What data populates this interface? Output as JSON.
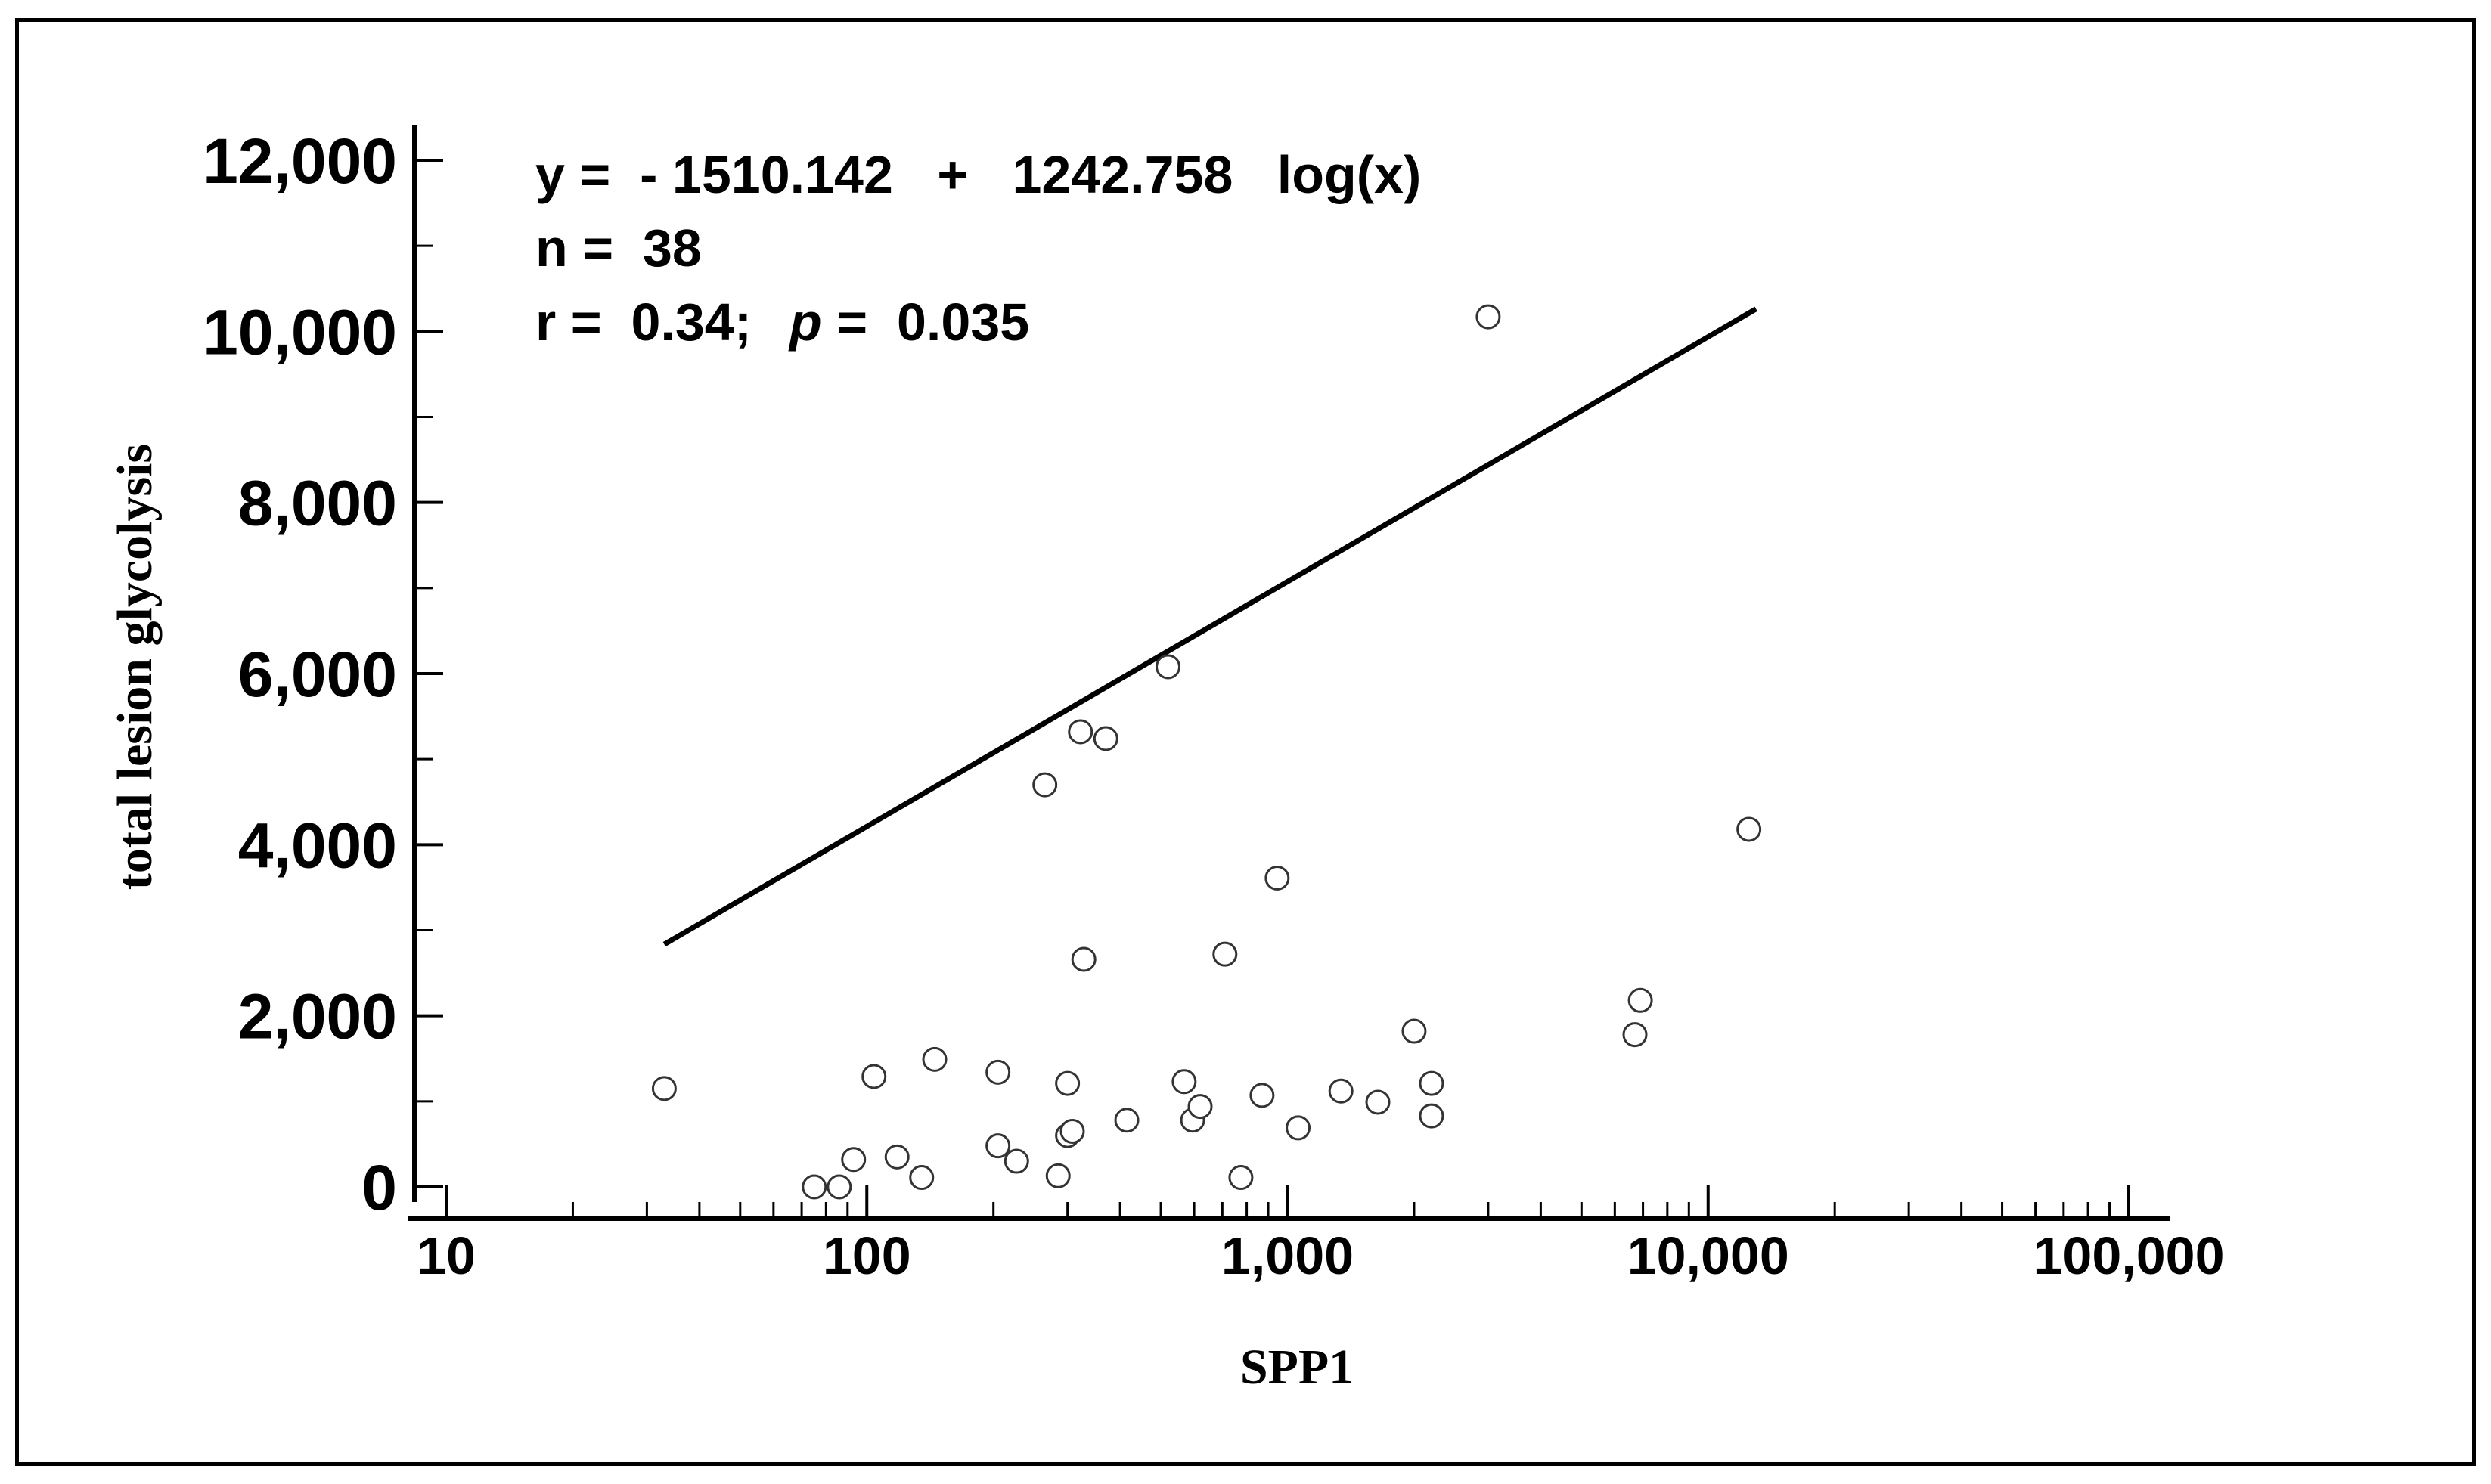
{
  "chart_data": {
    "type": "scatter",
    "title": "",
    "xlabel": "SPP1",
    "ylabel": "total lesion glycolysis",
    "x_scale": "log",
    "xlim": [
      10,
      100000
    ],
    "ylim": [
      0,
      12000
    ],
    "x_ticks": [
      10,
      100,
      1000,
      10000,
      100000
    ],
    "x_tick_labels": [
      "10",
      "100",
      "1,000",
      "10,000",
      "100,000"
    ],
    "y_ticks": [
      0,
      2000,
      4000,
      6000,
      8000,
      10000,
      12000
    ],
    "y_tick_labels": [
      "0",
      "2,000",
      "4,000",
      "6,000",
      "8,000",
      "10,000",
      "12,000"
    ],
    "grid": false,
    "annotations": {
      "equation": "y =  - 1510.142   +   1242.758   log(x)",
      "n_line": "n =  38",
      "r_line": "r =  0.34;",
      "p_symbol": "p",
      "p_line": " =  0.035"
    },
    "fit_line": {
      "intercept": -1510.142,
      "slope": 1242.758,
      "x_range": [
        33,
        13000
      ]
    },
    "points": [
      {
        "x": 33,
        "y": 1150
      },
      {
        "x": 75,
        "y": 0
      },
      {
        "x": 86,
        "y": 0
      },
      {
        "x": 93,
        "y": 320
      },
      {
        "x": 104,
        "y": 1290
      },
      {
        "x": 118,
        "y": 350
      },
      {
        "x": 135,
        "y": 110
      },
      {
        "x": 145,
        "y": 1490
      },
      {
        "x": 205,
        "y": 1340
      },
      {
        "x": 205,
        "y": 480
      },
      {
        "x": 227,
        "y": 300
      },
      {
        "x": 265,
        "y": 4700
      },
      {
        "x": 285,
        "y": 130
      },
      {
        "x": 300,
        "y": 600
      },
      {
        "x": 300,
        "y": 1210
      },
      {
        "x": 308,
        "y": 650
      },
      {
        "x": 322,
        "y": 5320
      },
      {
        "x": 328,
        "y": 2660
      },
      {
        "x": 370,
        "y": 5240
      },
      {
        "x": 415,
        "y": 780
      },
      {
        "x": 520,
        "y": 6080
      },
      {
        "x": 568,
        "y": 1230
      },
      {
        "x": 595,
        "y": 780
      },
      {
        "x": 620,
        "y": 940
      },
      {
        "x": 710,
        "y": 2720
      },
      {
        "x": 775,
        "y": 110
      },
      {
        "x": 870,
        "y": 1070
      },
      {
        "x": 945,
        "y": 3610
      },
      {
        "x": 1060,
        "y": 690
      },
      {
        "x": 1340,
        "y": 1120
      },
      {
        "x": 1640,
        "y": 990
      },
      {
        "x": 2000,
        "y": 1820
      },
      {
        "x": 2200,
        "y": 1210
      },
      {
        "x": 2200,
        "y": 830
      },
      {
        "x": 3000,
        "y": 10170
      },
      {
        "x": 6700,
        "y": 1780
      },
      {
        "x": 6900,
        "y": 2180
      },
      {
        "x": 12500,
        "y": 4180
      }
    ]
  }
}
